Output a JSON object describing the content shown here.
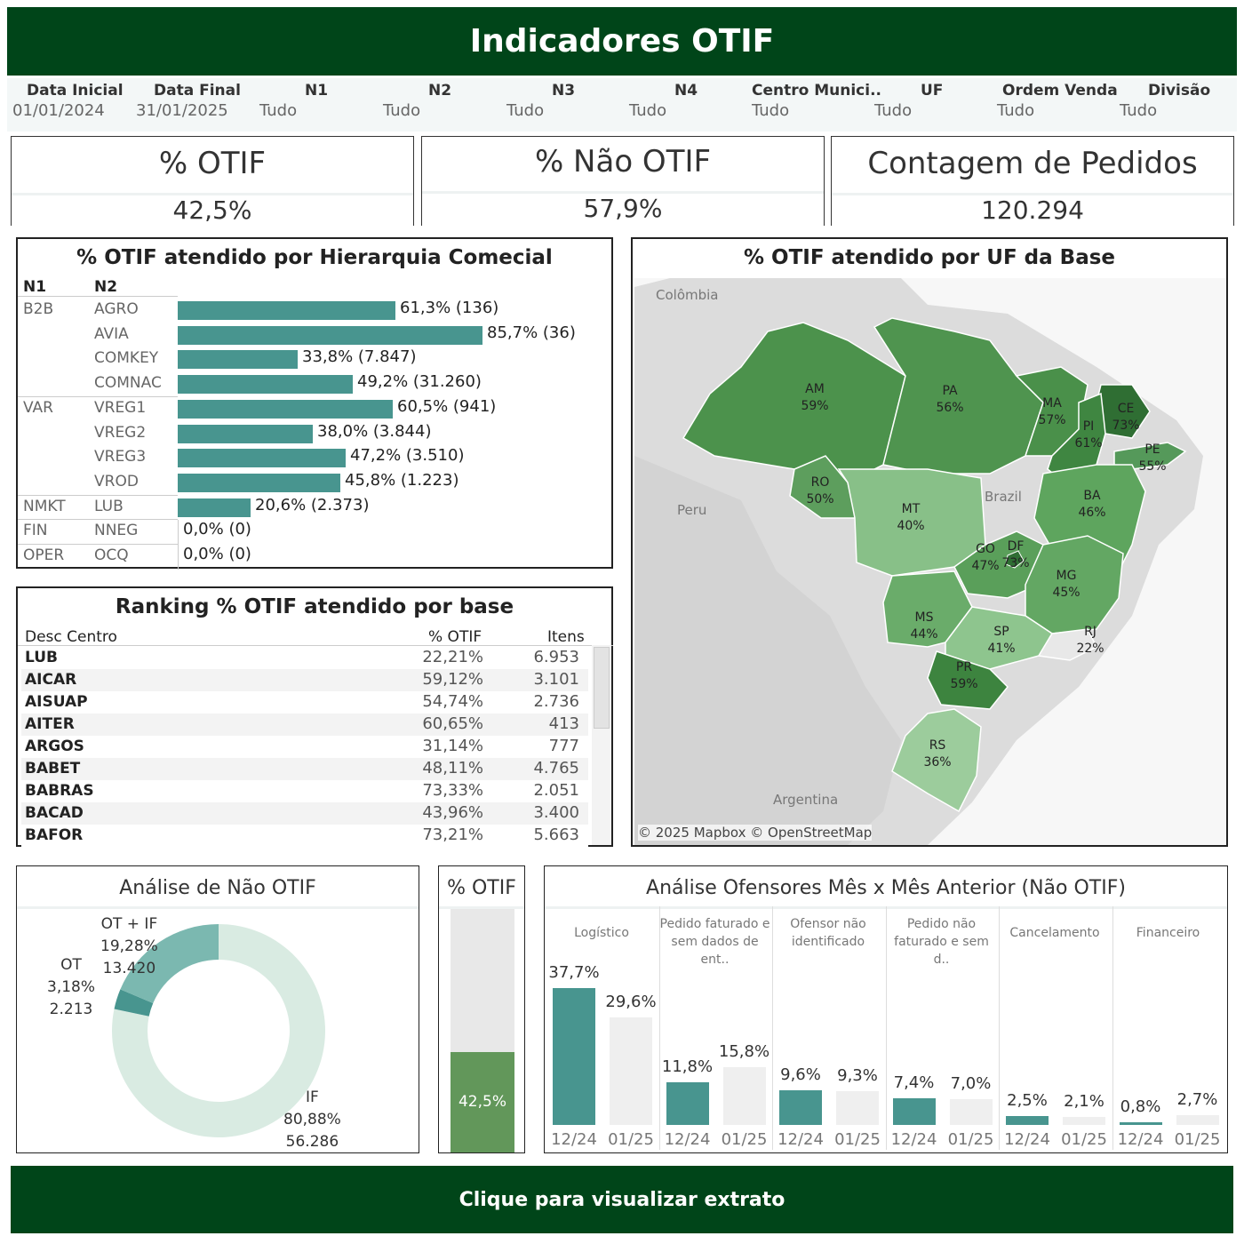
{
  "header": {
    "title": "Indicadores OTIF"
  },
  "filters": [
    {
      "label": "Data Inicial",
      "value": "01/01/2024"
    },
    {
      "label": "Data Final",
      "value": "31/01/2025"
    },
    {
      "label": "N1",
      "value": "Tudo"
    },
    {
      "label": "N2",
      "value": "Tudo"
    },
    {
      "label": "N3",
      "value": "Tudo"
    },
    {
      "label": "N4",
      "value": "Tudo"
    },
    {
      "label": "Centro Munici..",
      "value": "Tudo"
    },
    {
      "label": "UF",
      "value": "Tudo"
    },
    {
      "label": "Ordem Venda",
      "value": "Tudo"
    },
    {
      "label": "Divisão",
      "value": "Tudo"
    }
  ],
  "kpis": [
    {
      "title": "% OTIF",
      "value": "42,5%"
    },
    {
      "title": "% Não OTIF",
      "value": "57,9%"
    },
    {
      "title": "Contagem de Pedidos",
      "value": "120.294"
    }
  ],
  "chart_data": [
    {
      "type": "bar",
      "title": "% OTIF atendido por Hierarquia Comecial",
      "columns": [
        "N1",
        "N2"
      ],
      "rows": [
        {
          "n1": "B2B",
          "n2": "AGRO",
          "value": 61.3,
          "label": "61,3% (136)"
        },
        {
          "n1": "",
          "n2": "AVIA",
          "value": 85.7,
          "label": "85,7% (36)"
        },
        {
          "n1": "",
          "n2": "COMKEY",
          "value": 33.8,
          "label": "33,8% (7.847)"
        },
        {
          "n1": "",
          "n2": "COMNAC",
          "value": 49.2,
          "label": "49,2% (31.260)"
        },
        {
          "n1": "VAR",
          "n2": "VREG1",
          "value": 60.5,
          "label": "60,5% (941)"
        },
        {
          "n1": "",
          "n2": "VREG2",
          "value": 38.0,
          "label": "38,0% (3.844)"
        },
        {
          "n1": "",
          "n2": "VREG3",
          "value": 47.2,
          "label": "47,2% (3.510)"
        },
        {
          "n1": "",
          "n2": "VROD",
          "value": 45.8,
          "label": "45,8% (1.223)"
        },
        {
          "n1": "NMKT",
          "n2": "LUB",
          "value": 20.6,
          "label": "20,6% (2.373)"
        },
        {
          "n1": "FIN",
          "n2": "NNEG",
          "value": 0.0,
          "label": "0,0% (0)"
        },
        {
          "n1": "OPER",
          "n2": "OCQ",
          "value": 0.0,
          "label": "0,0% (0)"
        }
      ]
    },
    {
      "type": "table",
      "title": "Ranking % OTIF atendido  por base",
      "columns": [
        "Desc Centro",
        "% OTIF",
        "Itens"
      ],
      "rows": [
        [
          "LUB",
          "22,21%",
          "6.953"
        ],
        [
          "AICAR",
          "59,12%",
          "3.101"
        ],
        [
          "AISUAP",
          "54,74%",
          "2.736"
        ],
        [
          "AITER",
          "60,65%",
          "413"
        ],
        [
          "ARGOS",
          "31,14%",
          "777"
        ],
        [
          "BABET",
          "48,11%",
          "4.765"
        ],
        [
          "BABRAS",
          "73,33%",
          "2.051"
        ],
        [
          "BACAD",
          "43,96%",
          "3.400"
        ],
        [
          "BAFOR",
          "73,21%",
          "5.663"
        ]
      ]
    },
    {
      "type": "map",
      "title": "% OTIF atendido  por UF da Base",
      "regions": [
        {
          "uf": "AM",
          "value": "59%"
        },
        {
          "uf": "PA",
          "value": "56%"
        },
        {
          "uf": "MA",
          "value": "57%"
        },
        {
          "uf": "CE",
          "value": "73%"
        },
        {
          "uf": "PI",
          "value": "61%"
        },
        {
          "uf": "PE",
          "value": "55%"
        },
        {
          "uf": "RO",
          "value": "50%"
        },
        {
          "uf": "MT",
          "value": "40%"
        },
        {
          "uf": "BA",
          "value": "46%"
        },
        {
          "uf": "GO",
          "value": "47%"
        },
        {
          "uf": "DF",
          "value": "73%"
        },
        {
          "uf": "MG",
          "value": "45%"
        },
        {
          "uf": "MS",
          "value": "44%"
        },
        {
          "uf": "SP",
          "value": "41%"
        },
        {
          "uf": "RJ",
          "value": "22%"
        },
        {
          "uf": "PR",
          "value": "59%"
        },
        {
          "uf": "RS",
          "value": "36%"
        }
      ],
      "countries": [
        "Colômbia",
        "Peru",
        "Brazil",
        "Argentina"
      ],
      "attribution": "© 2025 Mapbox © OpenStreetMap"
    },
    {
      "type": "pie",
      "title": "Análise de Não OTIF",
      "slices": [
        {
          "name": "IF",
          "pct": "80,88%",
          "count": "56.286",
          "value": 80.88,
          "color": "#d9ebe2"
        },
        {
          "name": "OT",
          "pct": "3,18%",
          "count": "2.213",
          "value": 3.18,
          "color": "#48958f"
        },
        {
          "name": "OT + IF",
          "pct": "19,28%",
          "count": "13.420",
          "value": 19.28,
          "color": "#7bb8b0"
        }
      ]
    },
    {
      "type": "bar",
      "title": "% OTIF",
      "value": 42.5,
      "label": "42,5%",
      "color": "#62975a"
    },
    {
      "type": "bar",
      "title": "Análise Ofensores Mês x Mês Anterior (Não OTIF)",
      "categories": [
        "Logístico",
        "Pedido faturado e sem dados de ent..",
        "Ofensor não identificado",
        "Pedido não faturado e sem d..",
        "Cancelamento",
        "Financeiro"
      ],
      "periods": [
        "12/24",
        "01/25"
      ],
      "series": [
        {
          "values": [
            37.7,
            11.8,
            9.6,
            7.4,
            2.5,
            0.8
          ],
          "labels": [
            "37,7%",
            "11,8%",
            "9,6%",
            "7,4%",
            "2,5%",
            "0,8%"
          ],
          "color": "#48958f"
        },
        {
          "values": [
            29.6,
            15.8,
            9.3,
            7.0,
            2.1,
            2.7
          ],
          "labels": [
            "29,6%",
            "15,8%",
            "9,3%",
            "7,0%",
            "2,1%",
            "2,7%"
          ],
          "color": "#efefef"
        }
      ],
      "ylim": [
        0,
        40
      ]
    }
  ],
  "footer": {
    "button_label": "Clique para visualizar extrato"
  }
}
